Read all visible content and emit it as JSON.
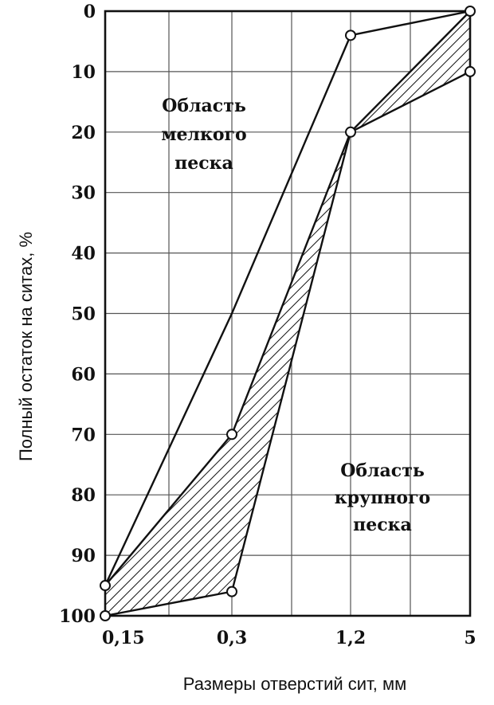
{
  "chart_data": {
    "type": "area",
    "xlabel": "Размеры отверстий сит, мм",
    "ylabel": "Полный остаток на ситах, %",
    "x_ticks": [
      "0,15",
      "0,3",
      "1,2",
      "5"
    ],
    "y_ticks": [
      "0",
      "10",
      "20",
      "30",
      "40",
      "50",
      "60",
      "70",
      "80",
      "90",
      "100"
    ],
    "ylim": [
      0,
      100
    ],
    "y_inverted": true,
    "grid": true,
    "series": [
      {
        "x": [
          "0,15",
          "0,3",
          "1,2",
          "5"
        ],
        "values": [
          95,
          50,
          4,
          0
        ]
      },
      {
        "x": [
          "0,15",
          "0,3",
          "1,2",
          "5"
        ],
        "values": [
          100,
          96,
          20,
          10
        ]
      },
      {
        "x": [
          "0,15",
          "0,3",
          "1,2",
          "5"
        ],
        "values": [
          95,
          70,
          20,
          0
        ]
      }
    ],
    "shaded_band": {
      "pattern": "hatched",
      "upper": {
        "x": [
          "0,15",
          "0,3",
          "1,2",
          "5"
        ],
        "values": [
          95,
          70,
          20,
          0
        ]
      },
      "lower": {
        "x": [
          "0,15",
          "0,3",
          "1,2",
          "5"
        ],
        "values": [
          100,
          96,
          20,
          10
        ]
      }
    },
    "markers": [
      {
        "x": "0,15",
        "value": 95
      },
      {
        "x": "0,15",
        "value": 100
      },
      {
        "x": "0,3",
        "value": 70
      },
      {
        "x": "0,3",
        "value": 96
      },
      {
        "x": "1,2",
        "value": 4
      },
      {
        "x": "1,2",
        "value": 20
      },
      {
        "x": "5",
        "value": 0
      },
      {
        "x": "5",
        "value": 10
      }
    ],
    "annotations": [
      {
        "lines": [
          "Область",
          "мелкого",
          "песка"
        ]
      },
      {
        "lines": [
          "Область",
          "крупного",
          "песка"
        ]
      }
    ]
  }
}
